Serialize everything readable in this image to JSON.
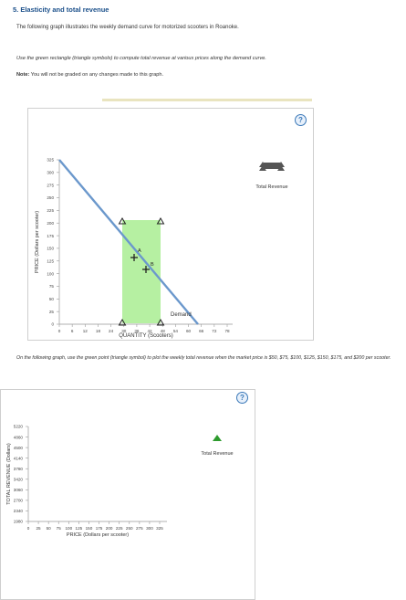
{
  "header": {
    "title": "5. Elasticity and total revenue",
    "intro": "The following graph illustrates the weekly demand curve for motorized scooters in Roanoke.",
    "instruction": "Use the green rectangle (triangle symbols) to compute total revenue at various prices along the demand curve.",
    "note_label": "Note:",
    "note_text": "You will not be graded on any changes made to this graph."
  },
  "graph1": {
    "help_symbol": "?",
    "legend_label": "Total Revenue",
    "y_axis_label": "PRICE (Dollars per scooter)",
    "x_axis_label": "QUANTITY (Scooters)",
    "y_ticks": [
      "325",
      "300",
      "275",
      "250",
      "225",
      "200",
      "175",
      "150",
      "125",
      "100",
      "75",
      "50",
      "25",
      "0"
    ],
    "x_ticks": [
      "0",
      "6",
      "12",
      "18",
      "24",
      "30",
      "36",
      "42",
      "48",
      "54",
      "60",
      "66",
      "72",
      "78"
    ],
    "demand_label": "Demand",
    "point_a": "A",
    "point_b": "B",
    "colors": {
      "demand_line": "#6b98cc",
      "rectangle_fill": "#b6f0a2",
      "legend_icon": "#555555"
    }
  },
  "question2": {
    "text": "On the following graph, use the green point (triangle symbol) to plot the weekly total revenue when the market price is $50, $75, $100, $125, $150, $175, and $200 per scooter."
  },
  "graph2": {
    "help_symbol": "?",
    "legend_label": "Total Revenue",
    "y_axis_label": "TOTAL REVENUE (Dollars)",
    "x_axis_label": "PRICE (Dollars per scooter)",
    "y_ticks": [
      "5220",
      "4860",
      "4500",
      "4140",
      "3780",
      "3420",
      "3060",
      "2700",
      "2340",
      "1980"
    ],
    "x_ticks": [
      "0",
      "25",
      "50",
      "75",
      "100",
      "125",
      "150",
      "175",
      "200",
      "225",
      "250",
      "275",
      "300",
      "325"
    ],
    "colors": {
      "legend_icon": "#2e9b2e"
    }
  }
}
